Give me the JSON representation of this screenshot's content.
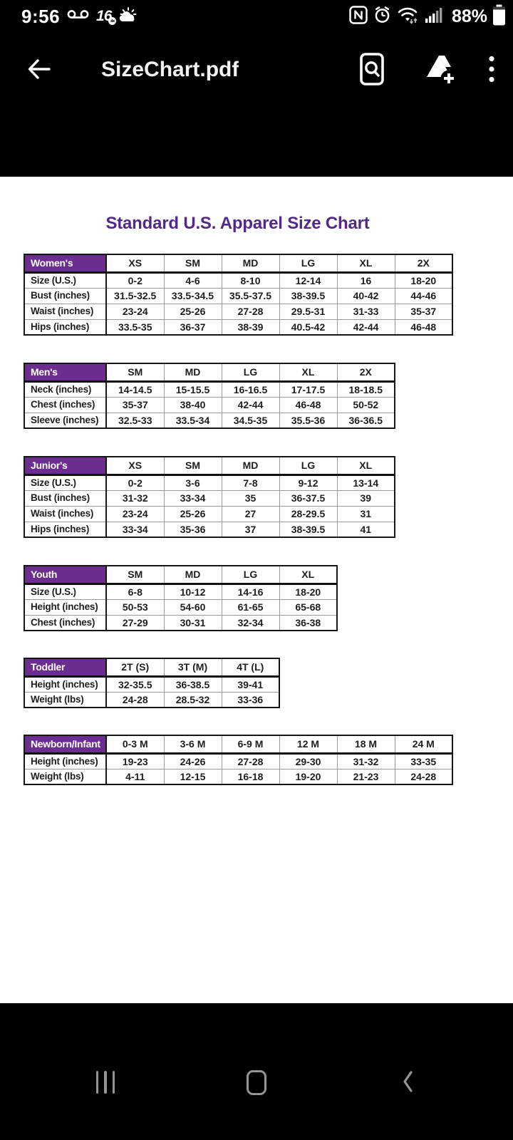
{
  "status_bar": {
    "time": "9:56",
    "battery": "88%",
    "tv_logo": "16",
    "tv_logo_badge": "abc",
    "left_icons": [
      "voicemail-icon",
      "tv-16-logo-icon",
      "weather-icon"
    ],
    "right_icons": [
      "nfc-icon",
      "alarm-icon",
      "wifi-icon",
      "signal-icon",
      "battery-icon"
    ]
  },
  "app_header": {
    "title": "SizeChart.pdf",
    "icons": [
      "back-arrow-icon",
      "find-in-file-icon",
      "add-to-drive-icon",
      "overflow-menu-icon"
    ]
  },
  "document": {
    "title": "Standard U.S. Apparel Size Chart",
    "tables": [
      {
        "name": "Women's",
        "columns": [
          "XS",
          "SM",
          "MD",
          "LG",
          "XL",
          "2X"
        ],
        "rows": [
          {
            "label": "Size (U.S.)",
            "values": [
              "0-2",
              "4-6",
              "8-10",
              "12-14",
              "16",
              "18-20"
            ]
          },
          {
            "label": "Bust (inches)",
            "values": [
              "31.5-32.5",
              "33.5-34.5",
              "35.5-37.5",
              "38-39.5",
              "40-42",
              "44-46"
            ]
          },
          {
            "label": "Waist (inches)",
            "values": [
              "23-24",
              "25-26",
              "27-28",
              "29.5-31",
              "31-33",
              "35-37"
            ]
          },
          {
            "label": "Hips (inches)",
            "values": [
              "33.5-35",
              "36-37",
              "38-39",
              "40.5-42",
              "42-44",
              "46-48"
            ]
          }
        ]
      },
      {
        "name": "Men's",
        "columns": [
          "SM",
          "MD",
          "LG",
          "XL",
          "2X"
        ],
        "rows": [
          {
            "label": "Neck (inches)",
            "values": [
              "14-14.5",
              "15-15.5",
              "16-16.5",
              "17-17.5",
              "18-18.5"
            ]
          },
          {
            "label": "Chest (inches)",
            "values": [
              "35-37",
              "38-40",
              "42-44",
              "46-48",
              "50-52"
            ]
          },
          {
            "label": "Sleeve (inches)",
            "values": [
              "32.5-33",
              "33.5-34",
              "34.5-35",
              "35.5-36",
              "36-36.5"
            ]
          }
        ]
      },
      {
        "name": "Junior's",
        "columns": [
          "XS",
          "SM",
          "MD",
          "LG",
          "XL"
        ],
        "rows": [
          {
            "label": "Size (U.S.)",
            "values": [
              "0-2",
              "3-6",
              "7-8",
              "9-12",
              "13-14"
            ]
          },
          {
            "label": "Bust (inches)",
            "values": [
              "31-32",
              "33-34",
              "35",
              "36-37.5",
              "39"
            ]
          },
          {
            "label": "Waist (inches)",
            "values": [
              "23-24",
              "25-26",
              "27",
              "28-29.5",
              "31"
            ]
          },
          {
            "label": "Hips (inches)",
            "values": [
              "33-34",
              "35-36",
              "37",
              "38-39.5",
              "41"
            ]
          }
        ]
      },
      {
        "name": "Youth",
        "columns": [
          "SM",
          "MD",
          "LG",
          "XL"
        ],
        "rows": [
          {
            "label": "Size (U.S.)",
            "values": [
              "6-8",
              "10-12",
              "14-16",
              "18-20"
            ]
          },
          {
            "label": "Height (inches)",
            "values": [
              "50-53",
              "54-60",
              "61-65",
              "65-68"
            ]
          },
          {
            "label": "Chest (inches)",
            "values": [
              "27-29",
              "30-31",
              "32-34",
              "36-38"
            ]
          }
        ]
      },
      {
        "name": "Toddler",
        "columns": [
          "2T (S)",
          "3T (M)",
          "4T (L)"
        ],
        "rows": [
          {
            "label": "Height (inches)",
            "values": [
              "32-35.5",
              "36-38.5",
              "39-41"
            ]
          },
          {
            "label": "Weight (lbs)",
            "values": [
              "24-28",
              "28.5-32",
              "33-36"
            ]
          }
        ]
      },
      {
        "name": "Newborn/Infant",
        "columns": [
          "0-3 M",
          "3-6 M",
          "6-9 M",
          "12 M",
          "18 M",
          "24 M"
        ],
        "rows": [
          {
            "label": "Height (inches)",
            "values": [
              "19-23",
              "24-26",
              "27-28",
              "29-30",
              "31-32",
              "33-35"
            ]
          },
          {
            "label": "Weight (lbs)",
            "values": [
              "4-11",
              "12-15",
              "16-18",
              "19-20",
              "21-23",
              "24-28"
            ]
          }
        ]
      }
    ]
  },
  "nav_bar": {
    "icons": [
      "recents-icon",
      "home-icon",
      "back-icon"
    ]
  },
  "colors": {
    "title_purple": "#522989",
    "table_header_purple": "#6c2d90",
    "page_background": "#ffffff",
    "chrome_background": "#000000",
    "nav_icon_gray": "#949494"
  }
}
